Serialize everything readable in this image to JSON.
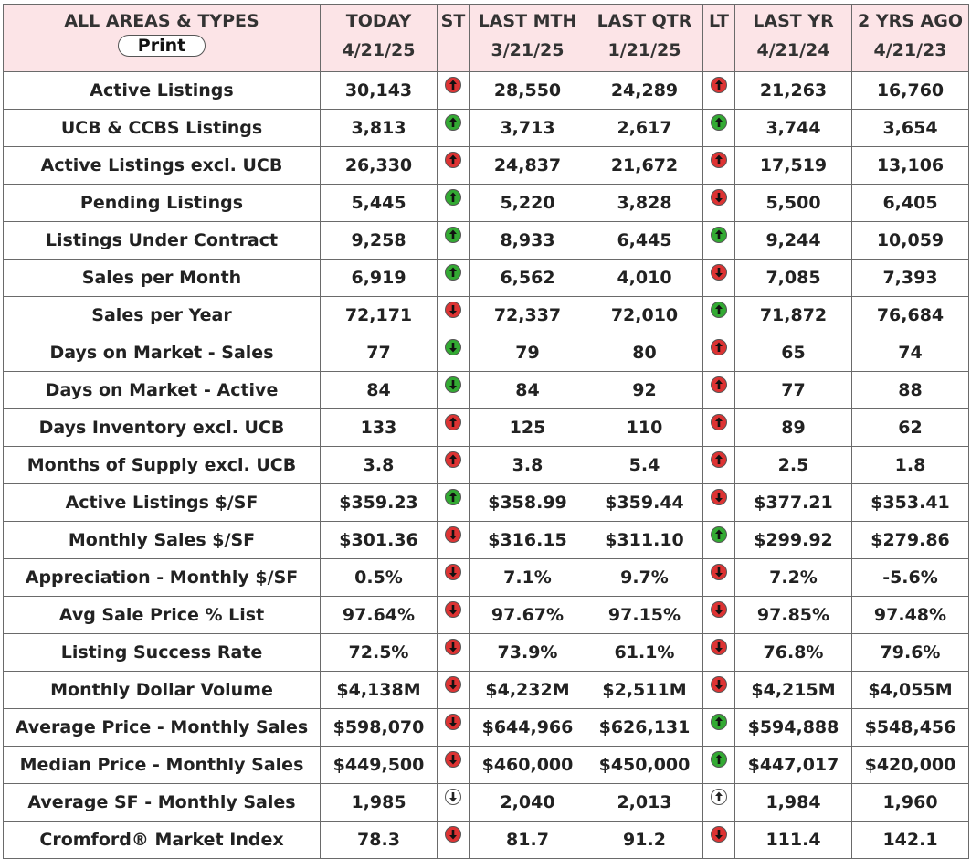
{
  "header": {
    "label_col": "ALL AREAS & TYPES",
    "print_label": "Print",
    "st_label": "ST",
    "lt_label": "LT",
    "today": {
      "title": "TODAY",
      "date": "4/21/25"
    },
    "last_mth": {
      "title": "LAST MTH",
      "date": "3/21/25"
    },
    "last_qtr": {
      "title": "LAST QTR",
      "date": "1/21/25"
    },
    "last_yr": {
      "title": "LAST YR",
      "date": "4/21/24"
    },
    "two_yrs": {
      "title": "2 YRS AGO",
      "date": "4/21/23"
    }
  },
  "colors": {
    "header_bg": "#fce4e7",
    "up_arrow": "#33aa33",
    "down_arrow": "#dd3333",
    "neutral_arrow": "#ffffff",
    "border": "#6a6a6a"
  },
  "rows": [
    {
      "label": "Active Listings",
      "today": "30,143",
      "st": "red-up-arrow-icon",
      "last_mth": "28,550",
      "last_qtr": "24,289",
      "lt": "red-up-arrow-icon",
      "last_yr": "21,263",
      "two_yrs": "16,760"
    },
    {
      "label": "UCB & CCBS Listings",
      "today": "3,813",
      "st": "green-up-arrow-icon",
      "last_mth": "3,713",
      "last_qtr": "2,617",
      "lt": "green-up-arrow-icon",
      "last_yr": "3,744",
      "two_yrs": "3,654"
    },
    {
      "label": "Active Listings excl. UCB",
      "today": "26,330",
      "st": "red-up-arrow-icon",
      "last_mth": "24,837",
      "last_qtr": "21,672",
      "lt": "red-up-arrow-icon",
      "last_yr": "17,519",
      "two_yrs": "13,106"
    },
    {
      "label": "Pending Listings",
      "today": "5,445",
      "st": "green-up-arrow-icon",
      "last_mth": "5,220",
      "last_qtr": "3,828",
      "lt": "red-down-arrow-icon",
      "last_yr": "5,500",
      "two_yrs": "6,405"
    },
    {
      "label": "Listings Under Contract",
      "today": "9,258",
      "st": "green-up-arrow-icon",
      "last_mth": "8,933",
      "last_qtr": "6,445",
      "lt": "green-up-arrow-icon",
      "last_yr": "9,244",
      "two_yrs": "10,059"
    },
    {
      "label": "Sales per Month",
      "today": "6,919",
      "st": "green-up-arrow-icon",
      "last_mth": "6,562",
      "last_qtr": "4,010",
      "lt": "red-down-arrow-icon",
      "last_yr": "7,085",
      "two_yrs": "7,393"
    },
    {
      "label": "Sales per Year",
      "today": "72,171",
      "st": "red-down-arrow-icon",
      "last_mth": "72,337",
      "last_qtr": "72,010",
      "lt": "green-up-arrow-icon",
      "last_yr": "71,872",
      "two_yrs": "76,684"
    },
    {
      "label": "Days on Market - Sales",
      "today": "77",
      "st": "green-down-arrow-icon",
      "last_mth": "79",
      "last_qtr": "80",
      "lt": "red-up-arrow-icon",
      "last_yr": "65",
      "two_yrs": "74"
    },
    {
      "label": "Days on Market - Active",
      "today": "84",
      "st": "green-down-arrow-icon",
      "last_mth": "84",
      "last_qtr": "92",
      "lt": "red-up-arrow-icon",
      "last_yr": "77",
      "two_yrs": "88"
    },
    {
      "label": "Days Inventory excl. UCB",
      "today": "133",
      "st": "red-up-arrow-icon",
      "last_mth": "125",
      "last_qtr": "110",
      "lt": "red-up-arrow-icon",
      "last_yr": "89",
      "two_yrs": "62"
    },
    {
      "label": "Months of Supply excl. UCB",
      "today": "3.8",
      "st": "red-up-arrow-icon",
      "last_mth": "3.8",
      "last_qtr": "5.4",
      "lt": "red-up-arrow-icon",
      "last_yr": "2.5",
      "two_yrs": "1.8"
    },
    {
      "label": "Active Listings $/SF",
      "today": "$359.23",
      "st": "green-up-arrow-icon",
      "last_mth": "$358.99",
      "last_qtr": "$359.44",
      "lt": "red-down-arrow-icon",
      "last_yr": "$377.21",
      "two_yrs": "$353.41"
    },
    {
      "label": "Monthly Sales $/SF",
      "today": "$301.36",
      "st": "red-down-arrow-icon",
      "last_mth": "$316.15",
      "last_qtr": "$311.10",
      "lt": "green-up-arrow-icon",
      "last_yr": "$299.92",
      "two_yrs": "$279.86"
    },
    {
      "label": "Appreciation - Monthly $/SF",
      "today": "0.5%",
      "st": "red-down-arrow-icon",
      "last_mth": "7.1%",
      "last_qtr": "9.7%",
      "lt": "red-down-arrow-icon",
      "last_yr": "7.2%",
      "two_yrs": "-5.6%"
    },
    {
      "label": "Avg Sale Price % List",
      "today": "97.64%",
      "st": "red-down-arrow-icon",
      "last_mth": "97.67%",
      "last_qtr": "97.15%",
      "lt": "red-down-arrow-icon",
      "last_yr": "97.85%",
      "two_yrs": "97.48%"
    },
    {
      "label": "Listing Success Rate",
      "today": "72.5%",
      "st": "red-down-arrow-icon",
      "last_mth": "73.9%",
      "last_qtr": "61.1%",
      "lt": "red-down-arrow-icon",
      "last_yr": "76.8%",
      "two_yrs": "79.6%"
    },
    {
      "label": "Monthly Dollar Volume",
      "today": "$4,138M",
      "st": "red-down-arrow-icon",
      "last_mth": "$4,232M",
      "last_qtr": "$2,511M",
      "lt": "red-down-arrow-icon",
      "last_yr": "$4,215M",
      "two_yrs": "$4,055M"
    },
    {
      "label": "Average Price - Monthly Sales",
      "today": "$598,070",
      "st": "red-down-arrow-icon",
      "last_mth": "$644,966",
      "last_qtr": "$626,131",
      "lt": "green-up-arrow-icon",
      "last_yr": "$594,888",
      "two_yrs": "$548,456"
    },
    {
      "label": "Median Price - Monthly Sales",
      "today": "$449,500",
      "st": "red-down-arrow-icon",
      "last_mth": "$460,000",
      "last_qtr": "$450,000",
      "lt": "green-up-arrow-icon",
      "last_yr": "$447,017",
      "two_yrs": "$420,000"
    },
    {
      "label": "Average SF - Monthly Sales",
      "today": "1,985",
      "st": "white-down-arrow-icon",
      "last_mth": "2,040",
      "last_qtr": "2,013",
      "lt": "white-up-arrow-icon",
      "last_yr": "1,984",
      "two_yrs": "1,960"
    },
    {
      "label": "Cromford® Market Index",
      "today": "78.3",
      "st": "red-down-arrow-icon",
      "last_mth": "81.7",
      "last_qtr": "91.2",
      "lt": "red-down-arrow-icon",
      "last_yr": "111.4",
      "two_yrs": "142.1"
    }
  ]
}
